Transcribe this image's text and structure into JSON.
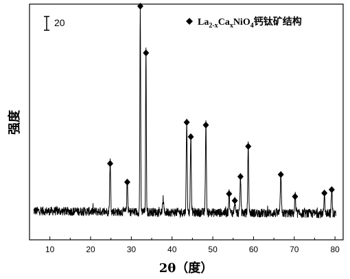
{
  "chart_data": {
    "type": "line",
    "title": "",
    "xlabel": "2θ（度）",
    "ylabel": "强度",
    "xlim": [
      5,
      82
    ],
    "ylim": [
      0,
      300
    ],
    "x_ticks": [
      10,
      20,
      30,
      40,
      50,
      60,
      70,
      80
    ],
    "grid": false,
    "legend_position": "top-right",
    "scale_bar": {
      "label": "20",
      "value": 20
    },
    "legend": {
      "marker": "diamond",
      "text_parts": [
        "La",
        "2-x",
        "Ca",
        "x",
        "NiO",
        "4",
        "钙钛矿结构"
      ]
    },
    "series": [
      {
        "name": "",
        "peaks": [
          {
            "x": 24.8,
            "y": 73
          },
          {
            "x": 29.0,
            "y": 46
          },
          {
            "x": 32.2,
            "y": 302
          },
          {
            "x": 33.6,
            "y": 234
          },
          {
            "x": 37.8,
            "y": 20
          },
          {
            "x": 43.6,
            "y": 133
          },
          {
            "x": 44.6,
            "y": 112
          },
          {
            "x": 48.3,
            "y": 129
          },
          {
            "x": 54.0,
            "y": 29
          },
          {
            "x": 55.4,
            "y": 19
          },
          {
            "x": 56.8,
            "y": 54
          },
          {
            "x": 58.7,
            "y": 98
          },
          {
            "x": 66.7,
            "y": 57
          },
          {
            "x": 70.2,
            "y": 25
          },
          {
            "x": 77.4,
            "y": 30
          },
          {
            "x": 79.2,
            "y": 35
          }
        ],
        "marked_peaks_x": [
          24.8,
          29.0,
          32.2,
          33.6,
          43.6,
          44.6,
          48.3,
          54.0,
          55.4,
          56.8,
          58.7,
          66.7,
          70.2,
          77.4,
          79.2
        ],
        "baseline": {
          "start": 18,
          "end": 14
        }
      }
    ]
  }
}
